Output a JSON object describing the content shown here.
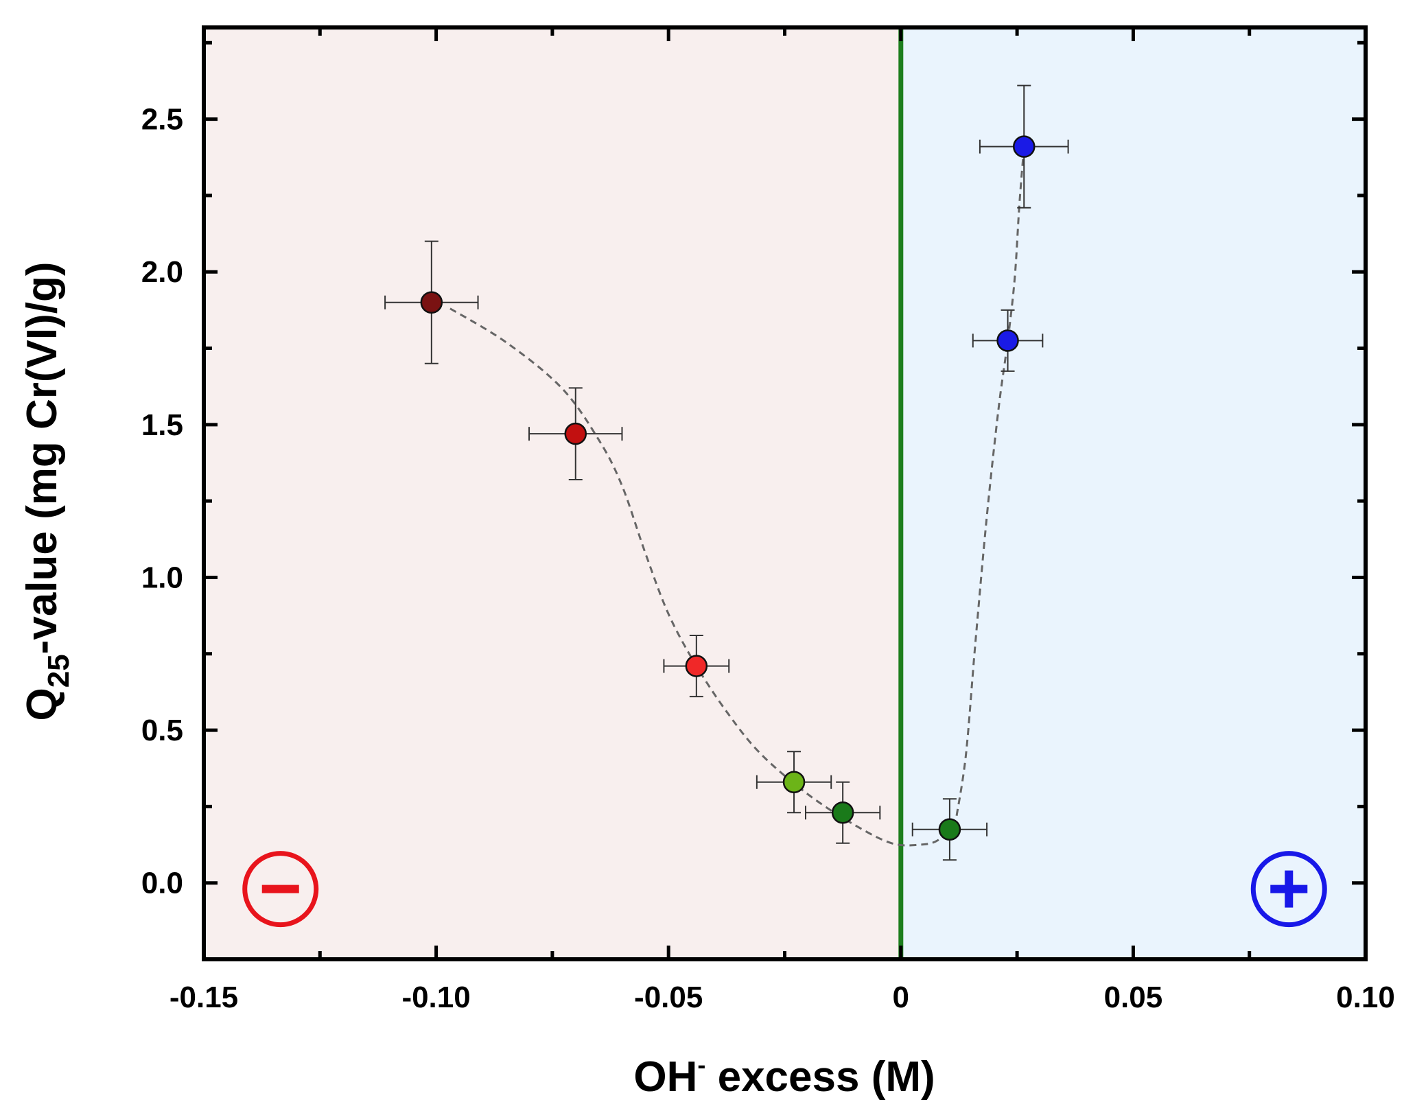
{
  "chart_data": {
    "type": "scatter",
    "xlabel": {
      "main": "OH",
      "sup": "-",
      "rest": " excess (M)"
    },
    "ylabel": {
      "main": "Q",
      "sub": "25",
      "rest": "-value (mg Cr(VI)/g)"
    },
    "xlim": [
      -0.15,
      0.1
    ],
    "ylim": [
      -0.25,
      2.8
    ],
    "xticks": [
      -0.15,
      -0.1,
      -0.05,
      0,
      0.05,
      0.1
    ],
    "xtick_labels": [
      "-0.15",
      "-0.10",
      "-0.05",
      "0",
      "0.05",
      "0.10"
    ],
    "yticks": [
      0.0,
      0.5,
      1.0,
      1.5,
      2.0,
      2.5
    ],
    "ytick_labels": [
      "0.0",
      "0.5",
      "1.0",
      "1.5",
      "2.0",
      "2.5"
    ],
    "regions": [
      {
        "name": "negative",
        "x_range": [
          -0.15,
          0
        ],
        "color": "#f8efee",
        "symbol": "minus",
        "symbol_color": "#e8141c"
      },
      {
        "name": "positive",
        "x_range": [
          0,
          0.1
        ],
        "color": "#eaf4fd",
        "symbol": "plus",
        "symbol_color": "#1818e8"
      }
    ],
    "zero_line": {
      "x": 0,
      "color": "#1e7e1e"
    },
    "points": [
      {
        "x": -0.101,
        "y": 1.9,
        "xerr": 0.01,
        "yerr": 0.2,
        "color": "#7a1212"
      },
      {
        "x": -0.07,
        "y": 1.47,
        "xerr": 0.01,
        "yerr": 0.15,
        "color": "#c21010"
      },
      {
        "x": -0.044,
        "y": 0.71,
        "xerr": 0.007,
        "yerr": 0.1,
        "color": "#f02828"
      },
      {
        "x": -0.023,
        "y": 0.33,
        "xerr": 0.008,
        "yerr": 0.1,
        "color": "#6cb418"
      },
      {
        "x": -0.0125,
        "y": 0.23,
        "xerr": 0.008,
        "yerr": 0.1,
        "color": "#1a7a1a"
      },
      {
        "x": 0.0105,
        "y": 0.175,
        "xerr": 0.008,
        "yerr": 0.1,
        "color": "#1a7a1a"
      },
      {
        "x": 0.023,
        "y": 1.775,
        "xerr": 0.0075,
        "yerr": 0.1,
        "color": "#1a1ae6"
      },
      {
        "x": 0.0265,
        "y": 2.41,
        "xerr": 0.0095,
        "yerr": 0.2,
        "color": "#1a1ae6"
      }
    ],
    "trend_left": [
      [
        -0.097,
        1.88
      ],
      [
        -0.085,
        1.77
      ],
      [
        -0.073,
        1.62
      ],
      [
        -0.065,
        1.45
      ],
      [
        -0.06,
        1.3
      ],
      [
        -0.055,
        1.08
      ],
      [
        -0.05,
        0.88
      ],
      [
        -0.044,
        0.71
      ],
      [
        -0.037,
        0.55
      ],
      [
        -0.03,
        0.42
      ],
      [
        -0.02,
        0.29
      ],
      [
        -0.01,
        0.19
      ],
      [
        -0.002,
        0.13
      ],
      [
        0.004,
        0.125
      ],
      [
        0.008,
        0.14
      ],
      [
        0.012,
        0.2
      ]
    ],
    "trend_right": [
      [
        0.012,
        0.22
      ],
      [
        0.014,
        0.42
      ],
      [
        0.016,
        0.78
      ],
      [
        0.0185,
        1.2
      ],
      [
        0.021,
        1.55
      ],
      [
        0.023,
        1.775
      ],
      [
        0.0245,
        1.98
      ],
      [
        0.0255,
        2.22
      ],
      [
        0.0265,
        2.41
      ]
    ],
    "trend_color": "#666666"
  }
}
